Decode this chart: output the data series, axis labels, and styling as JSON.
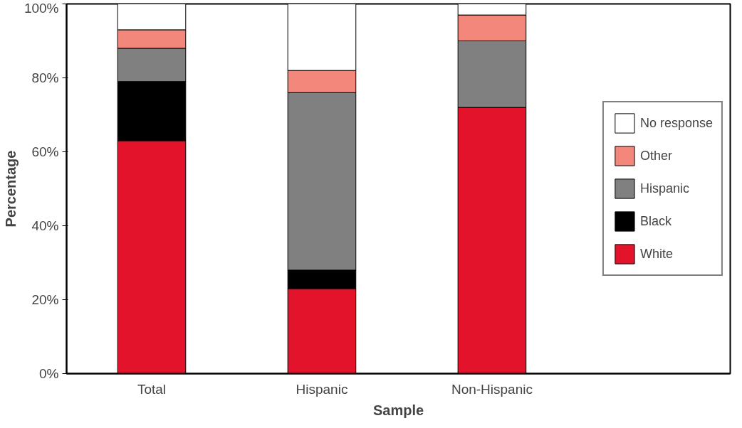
{
  "chart_data": {
    "type": "bar",
    "stacked": true,
    "xlabel": "Sample",
    "ylabel": "Percentage",
    "categories": [
      "Total",
      "Hispanic",
      "Non-Hispanic"
    ],
    "series": [
      {
        "name": "White",
        "color": "#e3132b",
        "values": [
          63,
          23,
          72
        ]
      },
      {
        "name": "Black",
        "color": "#000000",
        "values": [
          16,
          5,
          0
        ]
      },
      {
        "name": "Hispanic",
        "color": "#808080",
        "values": [
          9,
          48,
          18
        ]
      },
      {
        "name": "Other",
        "color": "#f4877c",
        "values": [
          5,
          6,
          7
        ]
      },
      {
        "name": "No response",
        "color": "#ffffff",
        "values": [
          7,
          18,
          3
        ]
      }
    ],
    "ylim": [
      0,
      100
    ],
    "yticks": [
      {
        "value": 0,
        "label": "0%"
      },
      {
        "value": 20,
        "label": "20%"
      },
      {
        "value": 40,
        "label": "40%"
      },
      {
        "value": 60,
        "label": "60%"
      },
      {
        "value": 80,
        "label": "80%"
      },
      {
        "value": 100,
        "label": "100%"
      }
    ],
    "grid": false,
    "legend": "right"
  }
}
